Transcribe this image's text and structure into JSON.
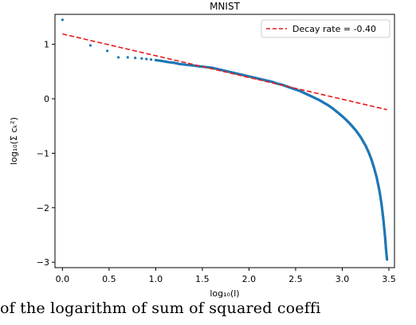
{
  "chart_data": {
    "type": "scatter",
    "title": "MNIST",
    "xlabel": "log₁₀(l)",
    "ylabel": "log₁₀(Σ cₖ²)",
    "xlim": [
      -0.08,
      3.56
    ],
    "ylim": [
      -3.1,
      1.55
    ],
    "x_ticks": [
      0.0,
      0.5,
      1.0,
      1.5,
      2.0,
      2.5,
      3.0,
      3.5
    ],
    "x_tick_labels": [
      "0.0",
      "0.5",
      "1.0",
      "1.5",
      "2.0",
      "2.5",
      "3.0",
      "3.5"
    ],
    "y_ticks": [
      1,
      0,
      -1,
      -2,
      -3
    ],
    "y_tick_labels": [
      "1",
      "0",
      "−1",
      "−2",
      "−3"
    ],
    "grid": false,
    "legend_position": "top-right",
    "series": [
      {
        "kind": "scatter",
        "color": "#1f77b4",
        "points": [
          [
            0.0,
            1.45
          ],
          [
            0.3,
            0.98
          ],
          [
            0.48,
            0.88
          ],
          [
            0.6,
            0.76
          ],
          [
            0.7,
            0.76
          ],
          [
            0.78,
            0.75
          ],
          [
            0.85,
            0.74
          ],
          [
            0.9,
            0.73
          ],
          [
            0.95,
            0.72
          ],
          [
            1.0,
            0.71
          ],
          [
            1.04,
            0.7
          ],
          [
            1.08,
            0.69
          ],
          [
            1.11,
            0.68
          ],
          [
            1.15,
            0.67
          ],
          [
            1.2,
            0.66
          ],
          [
            1.25,
            0.64
          ],
          [
            1.3,
            0.63
          ],
          [
            1.35,
            0.62
          ],
          [
            1.4,
            0.61
          ],
          [
            1.45,
            0.6
          ],
          [
            1.5,
            0.59
          ],
          [
            1.55,
            0.58
          ],
          [
            1.6,
            0.57
          ],
          [
            1.65,
            0.55
          ],
          [
            1.7,
            0.53
          ],
          [
            1.75,
            0.51
          ],
          [
            1.8,
            0.49
          ],
          [
            1.85,
            0.47
          ],
          [
            1.9,
            0.45
          ],
          [
            1.95,
            0.43
          ],
          [
            2.0,
            0.41
          ],
          [
            2.05,
            0.39
          ],
          [
            2.1,
            0.37
          ],
          [
            2.15,
            0.35
          ],
          [
            2.2,
            0.33
          ],
          [
            2.25,
            0.31
          ],
          [
            2.3,
            0.28
          ],
          [
            2.35,
            0.26
          ],
          [
            2.4,
            0.23
          ],
          [
            2.45,
            0.2
          ],
          [
            2.5,
            0.17
          ],
          [
            2.55,
            0.14
          ],
          [
            2.6,
            0.1
          ],
          [
            2.65,
            0.06
          ],
          [
            2.7,
            0.02
          ],
          [
            2.75,
            -0.02
          ],
          [
            2.8,
            -0.07
          ],
          [
            2.85,
            -0.12
          ],
          [
            2.9,
            -0.18
          ],
          [
            2.95,
            -0.25
          ],
          [
            3.0,
            -0.32
          ],
          [
            3.05,
            -0.4
          ],
          [
            3.1,
            -0.49
          ],
          [
            3.15,
            -0.59
          ],
          [
            3.2,
            -0.71
          ],
          [
            3.25,
            -0.86
          ],
          [
            3.28,
            -0.97
          ],
          [
            3.31,
            -1.1
          ],
          [
            3.34,
            -1.26
          ],
          [
            3.37,
            -1.45
          ],
          [
            3.4,
            -1.7
          ],
          [
            3.42,
            -1.92
          ],
          [
            3.44,
            -2.2
          ],
          [
            3.46,
            -2.55
          ],
          [
            3.47,
            -2.78
          ],
          [
            3.48,
            -2.95
          ]
        ]
      },
      {
        "kind": "line",
        "name": "Decay rate = -0.40",
        "color": "#e8191b",
        "dashed": true,
        "x": [
          0.0,
          3.48
        ],
        "y": [
          1.19,
          -0.2
        ]
      }
    ]
  },
  "caption": "of the logarithm of sum of squared coeffi"
}
